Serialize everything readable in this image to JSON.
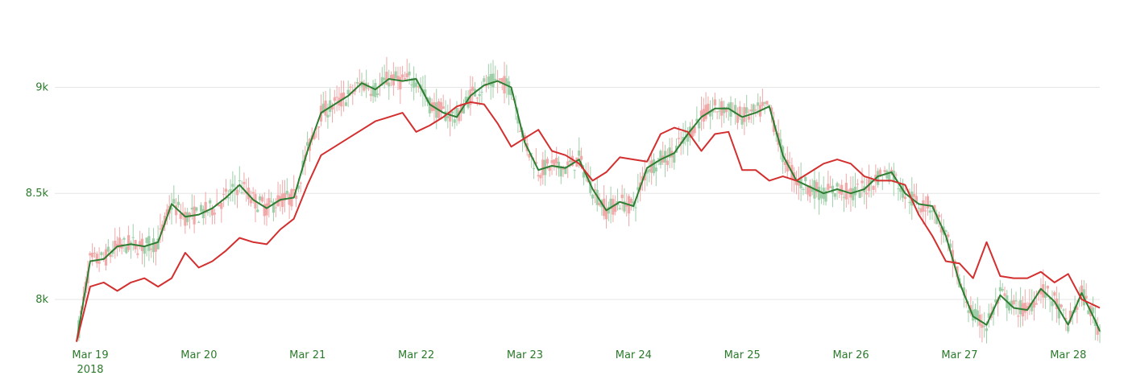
{
  "colors": {
    "tick_text": "#2b7a2b",
    "grid": "#e6e6e6",
    "candle_up": "#9fcfa9",
    "candle_down": "#f0a8a8",
    "fast_line": "#2e7d32",
    "slow_line": "#d32f2f"
  },
  "chart_data": {
    "type": "line",
    "title": "",
    "xlabel": "",
    "ylabel": "",
    "grid": true,
    "x_is_date": true,
    "xlim": [
      "2018-03-19T00:00",
      "2018-03-28T10:00"
    ],
    "ylim": [
      7810,
      9260
    ],
    "y_ticks": [
      {
        "value": 8000,
        "label": "8k"
      },
      {
        "value": 8500,
        "label": "8.5k"
      },
      {
        "value": 9000,
        "label": "9k"
      }
    ],
    "x_ticks": [
      {
        "value": "2018-03-19",
        "label": "Mar 19",
        "sublabel": "2018"
      },
      {
        "value": "2018-03-20",
        "label": "Mar 20",
        "sublabel": ""
      },
      {
        "value": "2018-03-21",
        "label": "Mar 21",
        "sublabel": ""
      },
      {
        "value": "2018-03-22",
        "label": "Mar 22",
        "sublabel": ""
      },
      {
        "value": "2018-03-23",
        "label": "Mar 23",
        "sublabel": ""
      },
      {
        "value": "2018-03-24",
        "label": "Mar 24",
        "sublabel": ""
      },
      {
        "value": "2018-03-25",
        "label": "Mar 25",
        "sublabel": ""
      },
      {
        "value": "2018-03-26",
        "label": "Mar 26",
        "sublabel": ""
      },
      {
        "value": "2018-03-27",
        "label": "Mar 27",
        "sublabel": ""
      },
      {
        "value": "2018-03-28",
        "label": "Mar 28",
        "sublabel": ""
      }
    ],
    "series": [
      {
        "kind": "line",
        "color": "#2e7d32",
        "x": [
          "2018-03-19T00:00",
          "2018-03-19T03:00",
          "2018-03-19T06:00",
          "2018-03-19T09:00",
          "2018-03-19T12:00",
          "2018-03-19T15:00",
          "2018-03-19T18:00",
          "2018-03-19T21:00",
          "2018-03-20T00:00",
          "2018-03-20T03:00",
          "2018-03-20T06:00",
          "2018-03-20T09:00",
          "2018-03-20T12:00",
          "2018-03-20T15:00",
          "2018-03-20T18:00",
          "2018-03-20T21:00",
          "2018-03-21T00:00",
          "2018-03-21T03:00",
          "2018-03-21T06:00",
          "2018-03-21T09:00",
          "2018-03-21T12:00",
          "2018-03-21T15:00",
          "2018-03-21T18:00",
          "2018-03-21T21:00",
          "2018-03-22T00:00",
          "2018-03-22T03:00",
          "2018-03-22T06:00",
          "2018-03-22T09:00",
          "2018-03-22T12:00",
          "2018-03-22T15:00",
          "2018-03-22T18:00",
          "2018-03-22T21:00",
          "2018-03-23T00:00",
          "2018-03-23T03:00",
          "2018-03-23T06:00",
          "2018-03-23T09:00",
          "2018-03-23T12:00",
          "2018-03-23T15:00",
          "2018-03-23T18:00",
          "2018-03-23T21:00",
          "2018-03-24T00:00",
          "2018-03-24T03:00",
          "2018-03-24T06:00",
          "2018-03-24T09:00",
          "2018-03-24T12:00",
          "2018-03-24T15:00",
          "2018-03-24T18:00",
          "2018-03-24T21:00",
          "2018-03-25T00:00",
          "2018-03-25T03:00",
          "2018-03-25T06:00",
          "2018-03-25T09:00",
          "2018-03-25T12:00",
          "2018-03-25T15:00",
          "2018-03-25T18:00",
          "2018-03-25T21:00",
          "2018-03-26T00:00",
          "2018-03-26T03:00",
          "2018-03-26T06:00",
          "2018-03-26T09:00",
          "2018-03-26T12:00",
          "2018-03-26T15:00",
          "2018-03-26T18:00",
          "2018-03-26T21:00",
          "2018-03-27T00:00",
          "2018-03-27T03:00",
          "2018-03-27T06:00",
          "2018-03-27T09:00",
          "2018-03-27T12:00",
          "2018-03-27T15:00",
          "2018-03-27T18:00",
          "2018-03-27T21:00",
          "2018-03-28T00:00",
          "2018-03-28T03:00",
          "2018-03-28T06:00",
          "2018-03-28T09:00",
          "2018-03-28T10:00"
        ],
        "values": [
          7800,
          8180,
          8190,
          8250,
          8260,
          8250,
          8270,
          8450,
          8390,
          8400,
          8430,
          8480,
          8540,
          8470,
          8430,
          8470,
          8480,
          8700,
          8880,
          8920,
          8960,
          9020,
          8990,
          9040,
          9030,
          9040,
          8920,
          8880,
          8860,
          8960,
          9010,
          9030,
          9000,
          8740,
          8610,
          8630,
          8620,
          8660,
          8520,
          8420,
          8460,
          8440,
          8620,
          8660,
          8690,
          8780,
          8860,
          8900,
          8900,
          8860,
          8880,
          8910,
          8680,
          8560,
          8530,
          8500,
          8520,
          8500,
          8520,
          8580,
          8600,
          8500,
          8450,
          8440,
          8300,
          8080,
          7920,
          7880,
          8020,
          7960,
          7950,
          8050,
          7990,
          7880,
          8030,
          7900,
          7850
        ]
      },
      {
        "kind": "line",
        "color": "#d32f2f",
        "x": [
          "2018-03-19T00:00",
          "2018-03-19T03:00",
          "2018-03-19T06:00",
          "2018-03-19T09:00",
          "2018-03-19T12:00",
          "2018-03-19T15:00",
          "2018-03-19T18:00",
          "2018-03-19T21:00",
          "2018-03-20T00:00",
          "2018-03-20T03:00",
          "2018-03-20T06:00",
          "2018-03-20T09:00",
          "2018-03-20T12:00",
          "2018-03-20T15:00",
          "2018-03-20T18:00",
          "2018-03-20T21:00",
          "2018-03-21T00:00",
          "2018-03-21T03:00",
          "2018-03-21T06:00",
          "2018-03-21T09:00",
          "2018-03-21T12:00",
          "2018-03-21T15:00",
          "2018-03-21T18:00",
          "2018-03-21T21:00",
          "2018-03-22T00:00",
          "2018-03-22T03:00",
          "2018-03-22T06:00",
          "2018-03-22T09:00",
          "2018-03-22T12:00",
          "2018-03-22T15:00",
          "2018-03-22T18:00",
          "2018-03-22T21:00",
          "2018-03-23T00:00",
          "2018-03-23T03:00",
          "2018-03-23T06:00",
          "2018-03-23T09:00",
          "2018-03-23T12:00",
          "2018-03-23T15:00",
          "2018-03-23T18:00",
          "2018-03-23T21:00",
          "2018-03-24T00:00",
          "2018-03-24T03:00",
          "2018-03-24T06:00",
          "2018-03-24T09:00",
          "2018-03-24T12:00",
          "2018-03-24T15:00",
          "2018-03-24T18:00",
          "2018-03-24T21:00",
          "2018-03-25T00:00",
          "2018-03-25T03:00",
          "2018-03-25T06:00",
          "2018-03-25T09:00",
          "2018-03-25T12:00",
          "2018-03-25T15:00",
          "2018-03-25T18:00",
          "2018-03-25T21:00",
          "2018-03-26T00:00",
          "2018-03-26T03:00",
          "2018-03-26T06:00",
          "2018-03-26T09:00",
          "2018-03-26T12:00",
          "2018-03-26T15:00",
          "2018-03-26T18:00",
          "2018-03-26T21:00",
          "2018-03-27T00:00",
          "2018-03-27T03:00",
          "2018-03-27T06:00",
          "2018-03-27T09:00",
          "2018-03-27T12:00",
          "2018-03-27T15:00",
          "2018-03-27T18:00",
          "2018-03-27T21:00",
          "2018-03-28T00:00",
          "2018-03-28T03:00",
          "2018-03-28T06:00",
          "2018-03-28T09:00",
          "2018-03-28T10:00"
        ],
        "values": [
          7800,
          8060,
          8080,
          8040,
          8080,
          8100,
          8060,
          8100,
          8220,
          8150,
          8180,
          8230,
          8290,
          8270,
          8260,
          8330,
          8380,
          8540,
          8680,
          8720,
          8760,
          8800,
          8840,
          8860,
          8880,
          8790,
          8820,
          8860,
          8910,
          8930,
          8920,
          8830,
          8720,
          8760,
          8800,
          8700,
          8680,
          8640,
          8560,
          8600,
          8670,
          8660,
          8650,
          8780,
          8810,
          8790,
          8700,
          8780,
          8790,
          8610,
          8610,
          8560,
          8580,
          8560,
          8600,
          8640,
          8660,
          8640,
          8580,
          8560,
          8560,
          8540,
          8400,
          8300,
          8180,
          8170,
          8100,
          8270,
          8110,
          8100,
          8100,
          8130,
          8080,
          8120,
          8000,
          7970,
          7960
        ]
      }
    ]
  }
}
